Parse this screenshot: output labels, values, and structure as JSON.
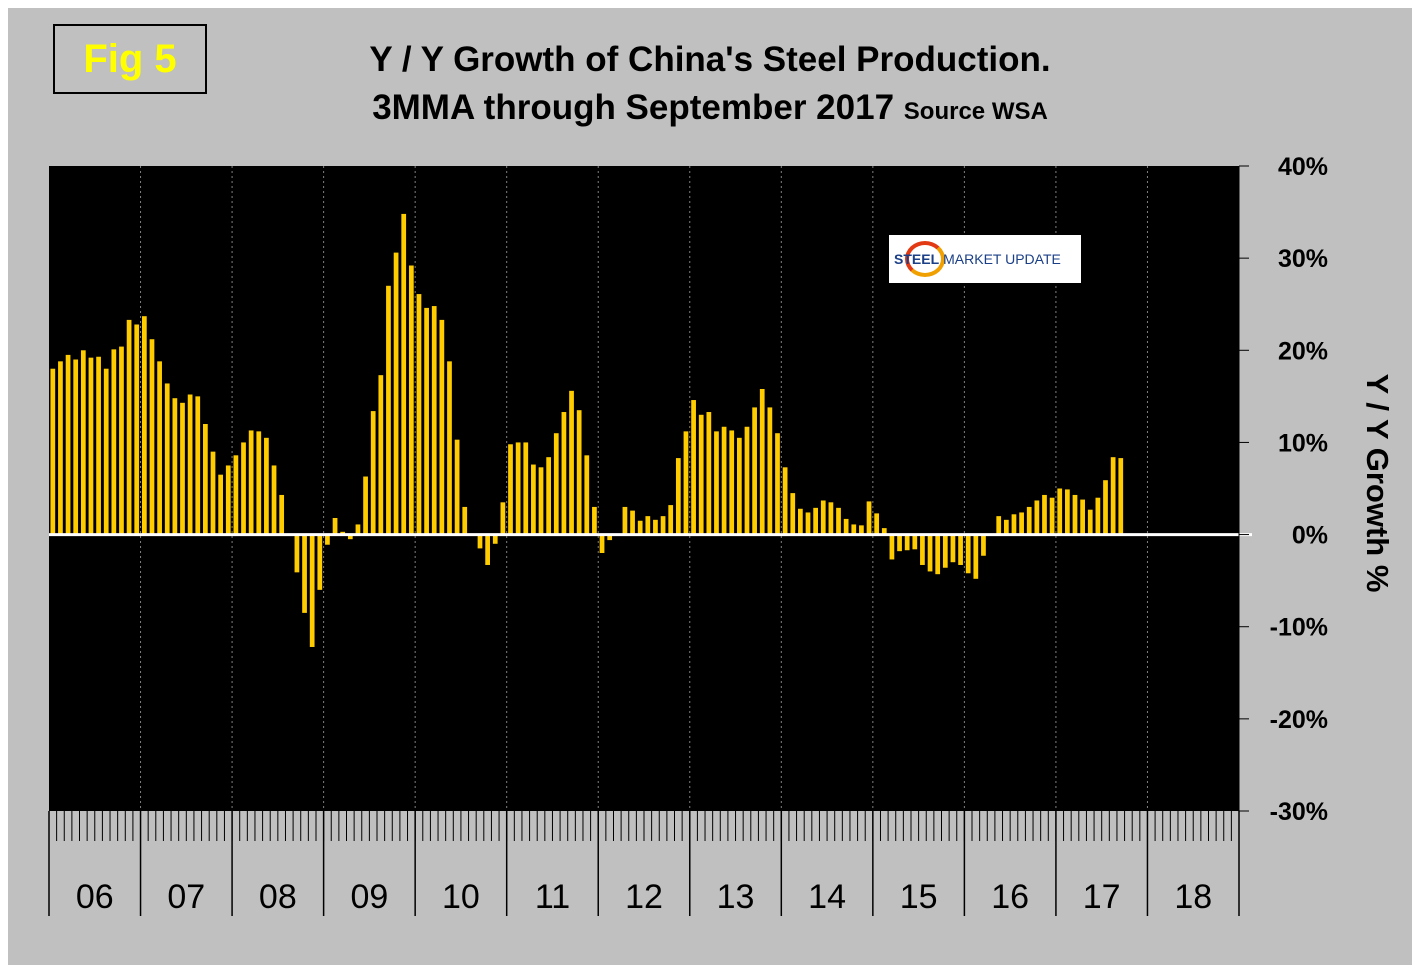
{
  "figure_label": "Fig 5",
  "title_line1": "Y / Y Growth of China's Steel Production.",
  "title_line2": "3MMA through September 2017",
  "source_text": "Source WSA",
  "logo": {
    "part1": "STEEL",
    "part2": "MARKET UPDATE"
  },
  "colors": {
    "bar": "#ffcc00",
    "plot_bg": "#000000",
    "frame": "#c0c0c0",
    "zero_line": "#ffffff",
    "fig_label": "#ffff00"
  },
  "chart_data": {
    "type": "bar",
    "title": "Y / Y Growth of China's Steel Production. 3MMA through September 2017",
    "ylabel": "Y / Y Growth %",
    "xlabel": "",
    "ylim": [
      -30,
      40
    ],
    "yticks": [
      40,
      30,
      20,
      10,
      0,
      -10,
      -20,
      -30
    ],
    "ytick_labels": [
      "40%",
      "30%",
      "20%",
      "10%",
      "0%",
      "-10%",
      "-20%",
      "-30%"
    ],
    "year_labels": [
      "06",
      "07",
      "08",
      "09",
      "10",
      "11",
      "12",
      "13",
      "14",
      "15",
      "16",
      "17",
      "18"
    ],
    "start": "2006-01",
    "end": "2017-09",
    "series": [
      {
        "name": "Y/Y growth 3MMA (%)",
        "values": [
          18,
          18.8,
          19.5,
          19,
          20,
          19.2,
          19.3,
          18,
          20.1,
          20.4,
          23.3,
          22.8,
          23.7,
          21.2,
          18.8,
          16.4,
          14.8,
          14.3,
          15.2,
          15,
          12,
          9,
          6.5,
          7.5,
          8.6,
          10,
          11.3,
          11.2,
          10.5,
          7.5,
          4.3,
          0,
          -4.1,
          -8.5,
          -12.2,
          -6,
          -1.1,
          1.8,
          0.3,
          -0.5,
          1.1,
          6.3,
          13.4,
          17.3,
          27,
          30.6,
          34.8,
          29.2,
          26.1,
          24.6,
          24.8,
          23.3,
          18.8,
          10.3,
          3,
          0,
          -1.5,
          -3.3,
          -1,
          3.5,
          9.8,
          10,
          10,
          7.6,
          7.3,
          8.4,
          11,
          13.3,
          15.6,
          13.5,
          8.6,
          3,
          -2,
          -0.6,
          0,
          3,
          2.6,
          1.5,
          2,
          1.6,
          2,
          3.2,
          8.3,
          11.2,
          14.6,
          13,
          13.3,
          11.2,
          11.7,
          11.3,
          10.5,
          11.7,
          13.8,
          15.8,
          13.8,
          11,
          7.3,
          4.5,
          2.8,
          2.4,
          2.9,
          3.7,
          3.5,
          2.9,
          1.7,
          1.1,
          1,
          3.6,
          2.3,
          0.7,
          -2.7,
          -1.8,
          -1.7,
          -1.6,
          -3.3,
          -4,
          -4.3,
          -3.6,
          -3,
          -3.3,
          -4.2,
          -4.8,
          -2.3,
          0,
          2,
          1.6,
          2.2,
          2.4,
          3,
          3.7,
          4.3,
          4,
          5,
          4.9,
          4.3,
          3.8,
          2.7,
          4,
          5.9,
          8.4,
          8.3
        ]
      }
    ],
    "grid": "vertical lines at year boundaries",
    "legend": "none"
  }
}
